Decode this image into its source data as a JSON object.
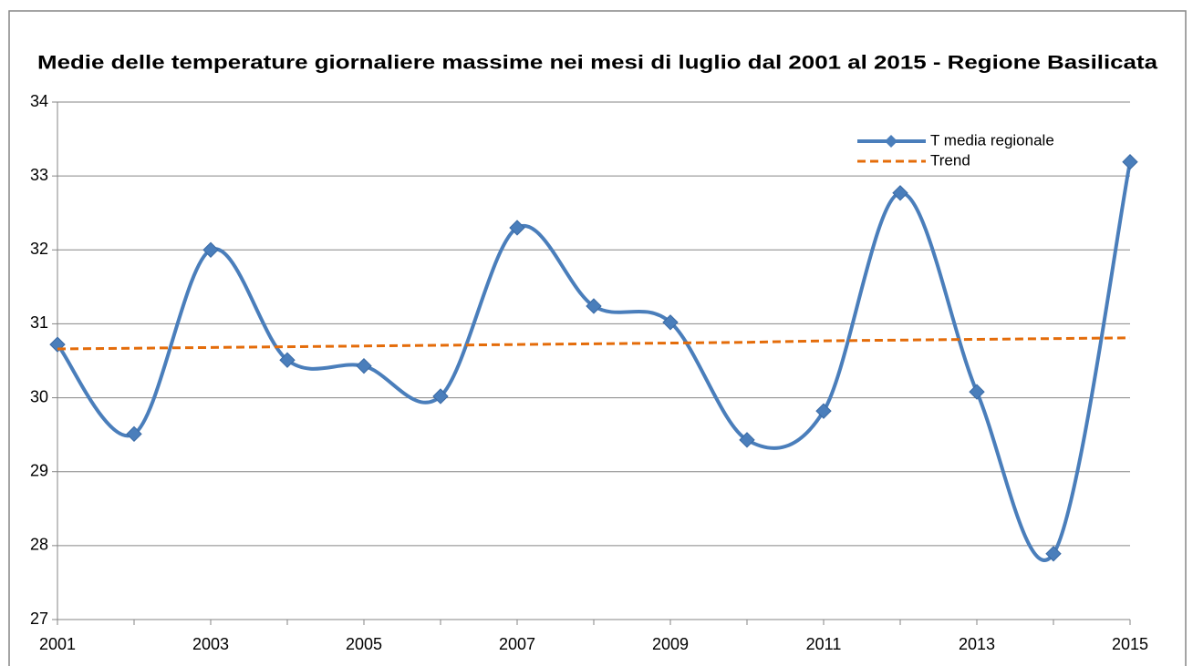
{
  "chart_data": {
    "type": "line",
    "title": "Medie delle temperature giornaliere massime nei mesi di luglio dal 2001 al 2015 - Regione Basilicata",
    "x": [
      2001,
      2002,
      2003,
      2004,
      2005,
      2006,
      2007,
      2008,
      2009,
      2010,
      2011,
      2012,
      2013,
      2014,
      2015
    ],
    "xlim": [
      2001,
      2015
    ],
    "xticks": [
      2001,
      2003,
      2005,
      2007,
      2009,
      2011,
      2013,
      2015
    ],
    "ylim": [
      27,
      34
    ],
    "yticks": [
      27,
      28,
      29,
      30,
      31,
      32,
      33,
      34
    ],
    "grid": true,
    "legend": "top-right",
    "series": [
      {
        "name": "T media regionale",
        "color": "#4a7ebb",
        "smooth": true,
        "marker": "diamond",
        "values": [
          30.72,
          29.51,
          32.0,
          30.51,
          30.43,
          30.02,
          32.3,
          31.24,
          31.02,
          29.43,
          29.82,
          32.77,
          30.08,
          27.89,
          33.19
        ]
      },
      {
        "name": "Trend",
        "color": "#e46c0a",
        "dashed": true,
        "values": [
          30.66,
          30.67,
          30.68,
          30.69,
          30.7,
          30.71,
          30.72,
          30.73,
          30.74,
          30.75,
          30.77,
          30.78,
          30.79,
          30.8,
          30.81
        ]
      }
    ]
  }
}
